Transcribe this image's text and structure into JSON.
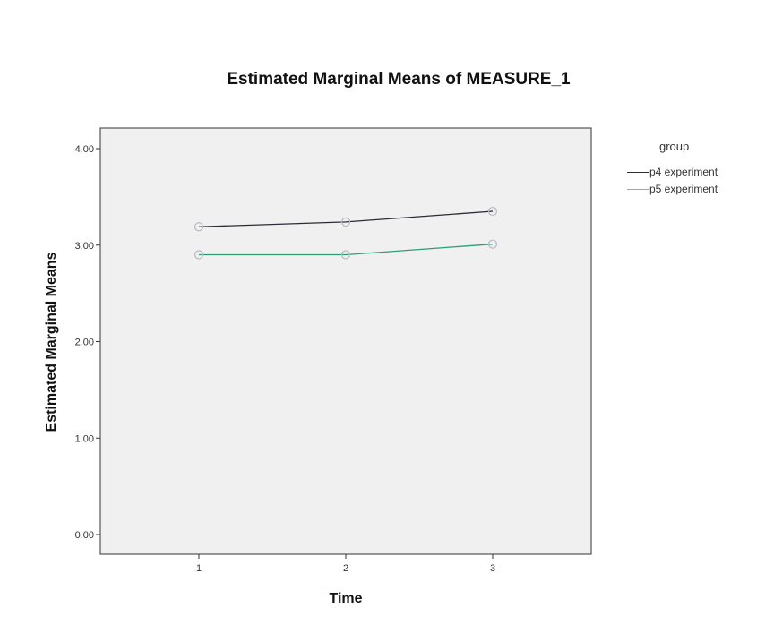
{
  "chart_data": {
    "type": "line",
    "title": "Estimated Marginal Means of MEASURE_1",
    "xlabel": "Time",
    "ylabel": "Estimated Marginal Means",
    "categories": [
      "1",
      "2",
      "3"
    ],
    "ylim": [
      0,
      4
    ],
    "y_ticks": [
      "0.00",
      "1.00",
      "2.00",
      "3.00",
      "4.00"
    ],
    "legend_title": "group",
    "legend_position": "right",
    "grid": false,
    "series": [
      {
        "name": "p4 experiment",
        "values": [
          3.19,
          3.24,
          3.35
        ],
        "color": "#2b2b3a"
      },
      {
        "name": "p5 experiment",
        "values": [
          2.9,
          2.9,
          3.01
        ],
        "color": "#2e9e72"
      }
    ],
    "plot_background": "#f0f0f0"
  }
}
